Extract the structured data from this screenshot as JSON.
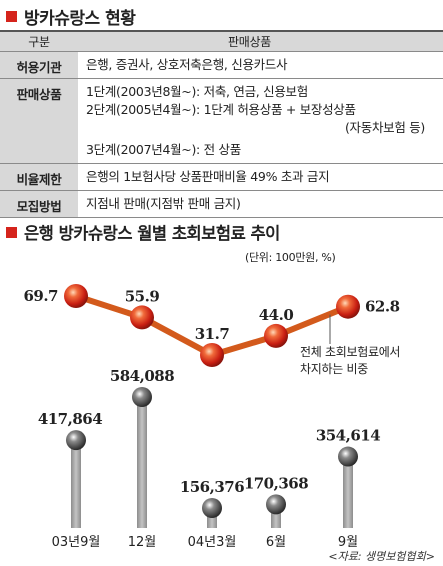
{
  "section1": {
    "title": "방카슈랑스 현황",
    "header": {
      "key": "구분",
      "value": "판매상품"
    },
    "rows": [
      {
        "key": "허용기관",
        "lines": [
          "은행, 증권사, 상호저축은행, 신용카드사"
        ]
      },
      {
        "key": "판매상품",
        "lines": [
          "1단계(2003년8월~): 저축, 연금, 신용보험",
          "2단계(2005년4월~): 1단계 허용상품 + 보장성상품",
          "(자동차보험 등)",
          "3단계(2007년4월~): 전 상품"
        ]
      },
      {
        "key": "비율제한",
        "lines": [
          "은행의 1보험사당 상품판매비율 49% 초과 금지"
        ]
      },
      {
        "key": "모집방법",
        "lines": [
          "지점내 판매(지점밖 판매 금지)"
        ]
      }
    ]
  },
  "section2": {
    "title": "은행 방카슈랑스 월별 초회보험료 추이",
    "unit": "(단위: 100만원, %)",
    "line_note": [
      "전체 초회보험료에서",
      "차지하는 비중"
    ],
    "source": "<자료: 생명보험협회>"
  },
  "colors": {
    "accent": "#d5241c",
    "ball": "#e03a1e",
    "line": "#d35a1c",
    "bar": "#9a9a9a",
    "header_bg": "#d8d8d8"
  },
  "chart_data": {
    "type": "line+bar",
    "categories": [
      "03년9월",
      "12월",
      "04년3월",
      "6월",
      "9월"
    ],
    "series": [
      {
        "values": [
          69.7,
          55.9,
          31.7,
          44.0,
          62.8
        ],
        "labels": [
          "69.7",
          "55.9",
          "31.7",
          "44.0",
          "62.8"
        ]
      },
      {
        "values": [
          417864,
          584088,
          156376,
          170368,
          354614
        ],
        "labels": [
          "417,864",
          "584,088",
          "156,376",
          "170,368",
          "354,614"
        ]
      }
    ]
  }
}
